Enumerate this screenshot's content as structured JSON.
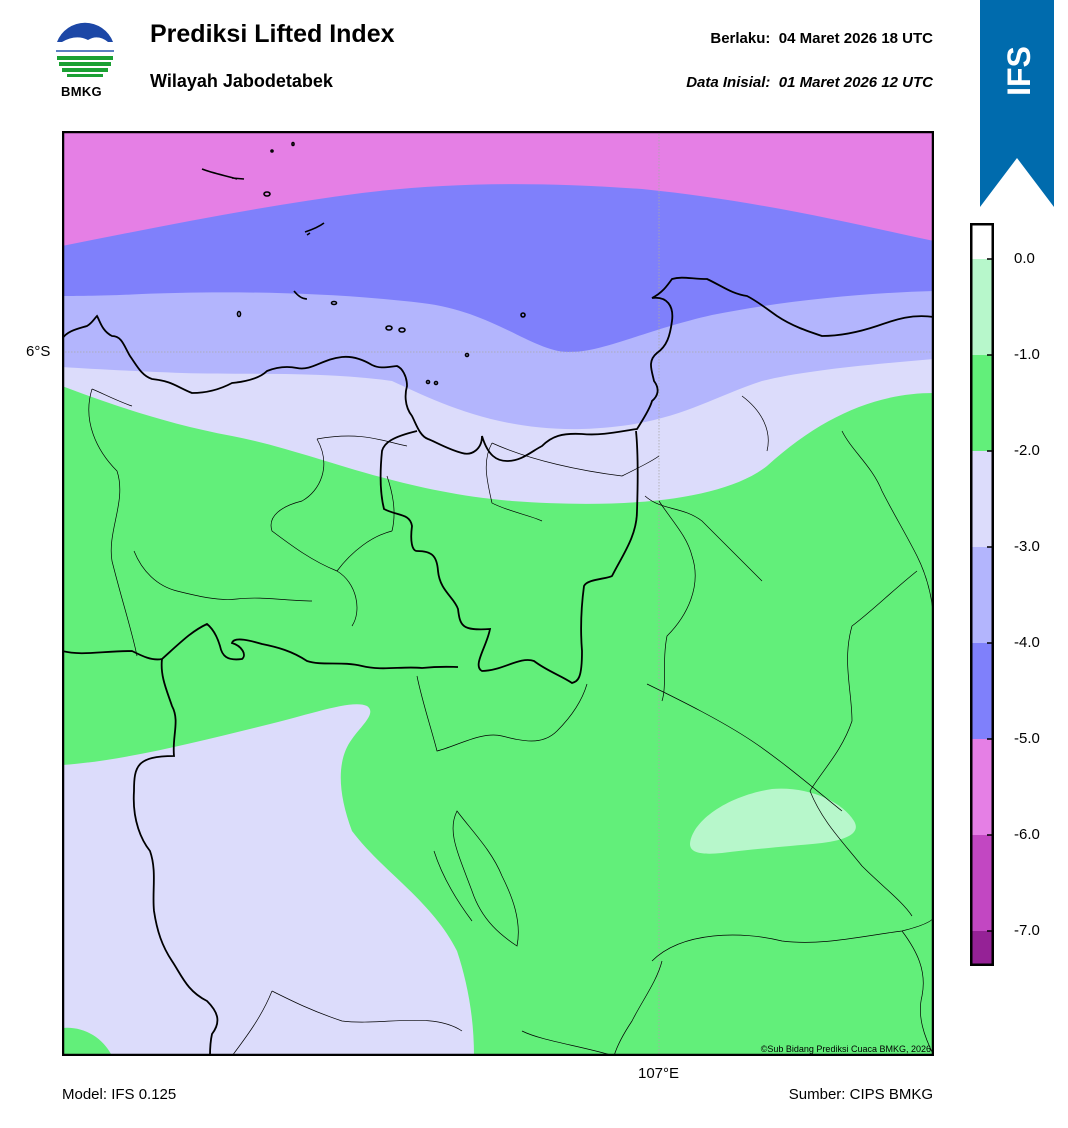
{
  "header": {
    "title": "Prediksi Lifted Index",
    "subtitle": "Wilayah Jabodetabek",
    "valid_label": "Berlaku:",
    "valid_time": "04 Maret 2026 18 UTC",
    "init_label": "Data Inisial:",
    "init_time": "01 Maret 2026 12 UTC"
  },
  "logo": {
    "text": "BMKG",
    "icon": "bmkg-logo"
  },
  "ribbon": {
    "text": "IFS",
    "color": "#006bad"
  },
  "map": {
    "lat_label": "6°S",
    "lon_label": "107°E",
    "credit": "©Sub Bidang Prediksi Cuaca BMKG, 2026"
  },
  "colorbar": {
    "labels": [
      "0.0",
      "-1.0",
      "-2.0",
      "-3.0",
      "-4.0",
      "-5.0",
      "-6.0",
      "-7.0"
    ],
    "colors": {
      "above_0": "#ffffff",
      "0_to_-1": "#b7f7cb",
      "-1_to_-2": "#62ef7a",
      "-2_to_-3": "#dcdcfb",
      "-3_to_-4": "#b3b5fd",
      "-4_to_-5": "#7f80fb",
      "-5_to_-6": "#e57fe5",
      "-6_to_-7": "#c247c2",
      "below_-7": "#952296"
    }
  },
  "footer": {
    "model": "Model: IFS 0.125",
    "source": "Sumber: CIPS BMKG"
  }
}
